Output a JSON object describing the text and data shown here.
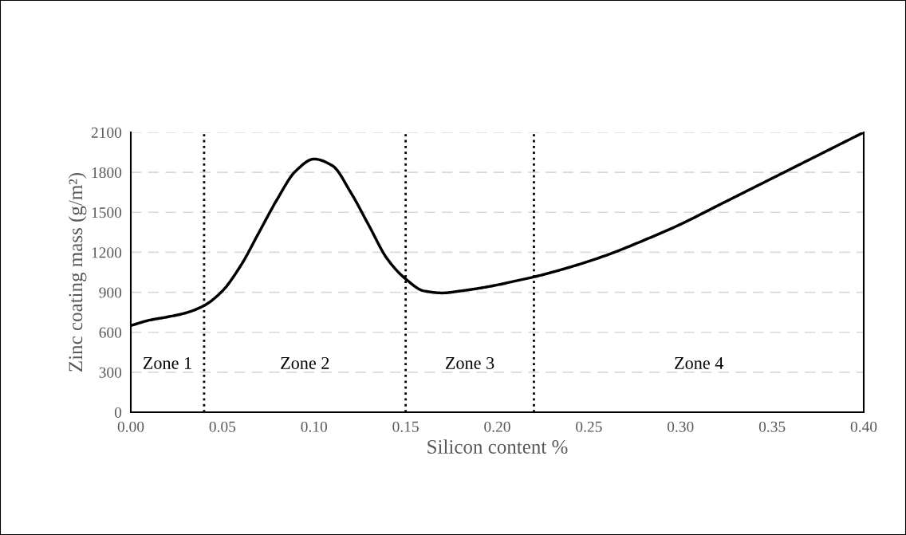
{
  "chart_data": {
    "type": "line",
    "xlabel": "Silicon content %",
    "ylabel": "Zinc coating mass (g/m²)",
    "x": [
      0,
      0.01,
      0.02,
      0.03,
      0.04,
      0.05,
      0.06,
      0.07,
      0.08,
      0.09,
      0.1,
      0.11,
      0.12,
      0.13,
      0.14,
      0.15,
      0.16,
      0.17,
      0.18,
      0.19,
      0.2,
      0.21,
      0.22,
      0.24,
      0.26,
      0.28,
      0.3,
      0.32,
      0.34,
      0.36,
      0.38,
      0.4
    ],
    "series": [
      {
        "color": "#000000",
        "values": [
          650,
          690,
          715,
          745,
          800,
          910,
          1100,
          1350,
          1600,
          1810,
          1900,
          1850,
          1650,
          1400,
          1150,
          1000,
          910,
          895,
          910,
          930,
          955,
          985,
          1015,
          1090,
          1180,
          1290,
          1410,
          1548,
          1686,
          1824,
          1962,
          2100
        ]
      }
    ],
    "xlim": [
      0,
      0.4
    ],
    "ylim": [
      0,
      2100
    ],
    "xticks": [
      {
        "value": 0,
        "label": "0.00"
      },
      {
        "value": 0.05,
        "label": "0.05"
      },
      {
        "value": 0.1,
        "label": "0.10"
      },
      {
        "value": 0.15,
        "label": "0.15"
      },
      {
        "value": 0.2,
        "label": "0.20"
      },
      {
        "value": 0.25,
        "label": "0.25"
      },
      {
        "value": 0.3,
        "label": "0.30"
      },
      {
        "value": 0.35,
        "label": "0.35"
      },
      {
        "value": 0.4,
        "label": "0.40"
      }
    ],
    "yticks": [
      0,
      300,
      600,
      900,
      1200,
      1500,
      1800,
      2100
    ],
    "grid": "y",
    "marker": "none",
    "line_style": "solid",
    "ref_lines": [
      {
        "axis": "x",
        "value": 0.04,
        "color": "#000000",
        "line_style": "dotted"
      },
      {
        "axis": "x",
        "value": 0.15,
        "color": "#000000",
        "line_style": "dotted"
      },
      {
        "axis": "x",
        "value": 0.22,
        "color": "#000000",
        "line_style": "dotted"
      }
    ],
    "annotations": [
      "Zone 1",
      "Zone 2",
      "Zone 3",
      "Zone 4"
    ]
  }
}
